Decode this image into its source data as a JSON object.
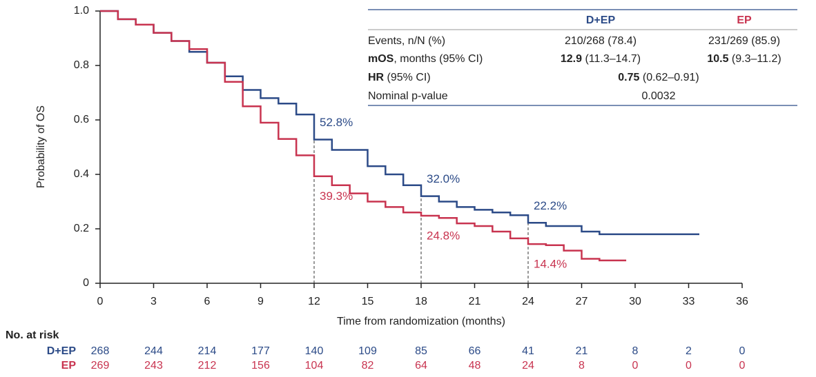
{
  "chart_data": {
    "type": "line",
    "step": true,
    "y_label": "Probability of OS",
    "x_label": "Time from randomization  (months)",
    "xlim": [
      0,
      36
    ],
    "xticks": [
      0,
      3,
      6,
      9,
      12,
      15,
      18,
      21,
      24,
      27,
      30,
      33,
      36
    ],
    "ylim": [
      0,
      1
    ],
    "yticks": [
      0,
      0.2,
      0.4,
      0.6,
      0.8,
      {
        "value": 1,
        "label": "1.0"
      }
    ],
    "landmark_x": [
      12,
      18,
      24
    ],
    "series": [
      {
        "name": "D+EP",
        "color": "#2b4a87",
        "x": [
          0,
          1,
          2,
          3,
          4,
          5,
          6,
          7,
          8,
          9,
          10,
          11,
          12,
          13,
          14,
          15,
          16,
          17,
          18,
          19,
          20,
          21,
          22,
          23,
          24,
          25,
          26,
          27,
          28,
          29,
          30,
          31,
          32,
          33,
          33.6
        ],
        "values": [
          1,
          0.97,
          0.95,
          0.92,
          0.89,
          0.85,
          0.81,
          0.76,
          0.71,
          0.68,
          0.66,
          0.62,
          0.528,
          0.49,
          0.49,
          0.43,
          0.4,
          0.36,
          0.32,
          0.3,
          0.28,
          0.27,
          0.26,
          0.25,
          0.222,
          0.21,
          0.21,
          0.19,
          0.18,
          0.18,
          0.18,
          0.18,
          0.18,
          0.18,
          0.18
        ],
        "landmark_values": [
          0.528,
          0.32,
          0.222
        ],
        "landmark_labels": [
          "52.8%",
          "32.0%",
          "22.2%"
        ]
      },
      {
        "name": "EP",
        "color": "#c8334f",
        "x": [
          0,
          1,
          2,
          3,
          4,
          5,
          6,
          7,
          8,
          9,
          10,
          11,
          12,
          13,
          14,
          15,
          16,
          17,
          18,
          19,
          20,
          21,
          22,
          23,
          24,
          25,
          26,
          27,
          28,
          29.5
        ],
        "values": [
          1,
          0.97,
          0.95,
          0.92,
          0.89,
          0.86,
          0.81,
          0.74,
          0.65,
          0.59,
          0.53,
          0.47,
          0.393,
          0.36,
          0.33,
          0.3,
          0.28,
          0.26,
          0.248,
          0.24,
          0.22,
          0.21,
          0.19,
          0.165,
          0.144,
          0.14,
          0.12,
          0.09,
          0.084,
          0.084
        ],
        "landmark_values": [
          0.393,
          0.248,
          0.144
        ],
        "landmark_labels": [
          "39.3%",
          "24.8%",
          "14.4%"
        ]
      }
    ],
    "summary_table": {
      "columns": [
        "D+EP",
        "EP"
      ],
      "rows": [
        {
          "label": {
            "t": "Events, n/N (%)"
          },
          "cells": [
            {
              "t": "210/268 (78.4)"
            },
            {
              "t": "231/269 (85.9)"
            }
          ]
        },
        {
          "label": {
            "b": "mOS",
            "t": ", months (95% CI)"
          },
          "cells": [
            {
              "b": "12.9",
              "t": " (11.3–14.7)"
            },
            {
              "b": "10.5",
              "t": " (9.3–11.2)"
            }
          ]
        },
        {
          "label": {
            "b": "HR",
            "t": " (95% CI)"
          },
          "cells": [
            {
              "b": "0.75",
              "t": " (0.62–0.91)"
            }
          ]
        },
        {
          "label": {
            "t": "Nominal p-value"
          },
          "cells": [
            {
              "t": "0.0032"
            }
          ]
        }
      ]
    },
    "risk_table": {
      "title": "No. at risk",
      "rows": [
        {
          "name": "D+EP",
          "values": [
            268,
            244,
            214,
            177,
            140,
            109,
            85,
            66,
            41,
            21,
            8,
            2,
            0
          ]
        },
        {
          "name": "EP",
          "values": [
            269,
            243,
            212,
            156,
            104,
            82,
            64,
            48,
            24,
            8,
            0,
            0,
            0
          ]
        }
      ]
    }
  }
}
